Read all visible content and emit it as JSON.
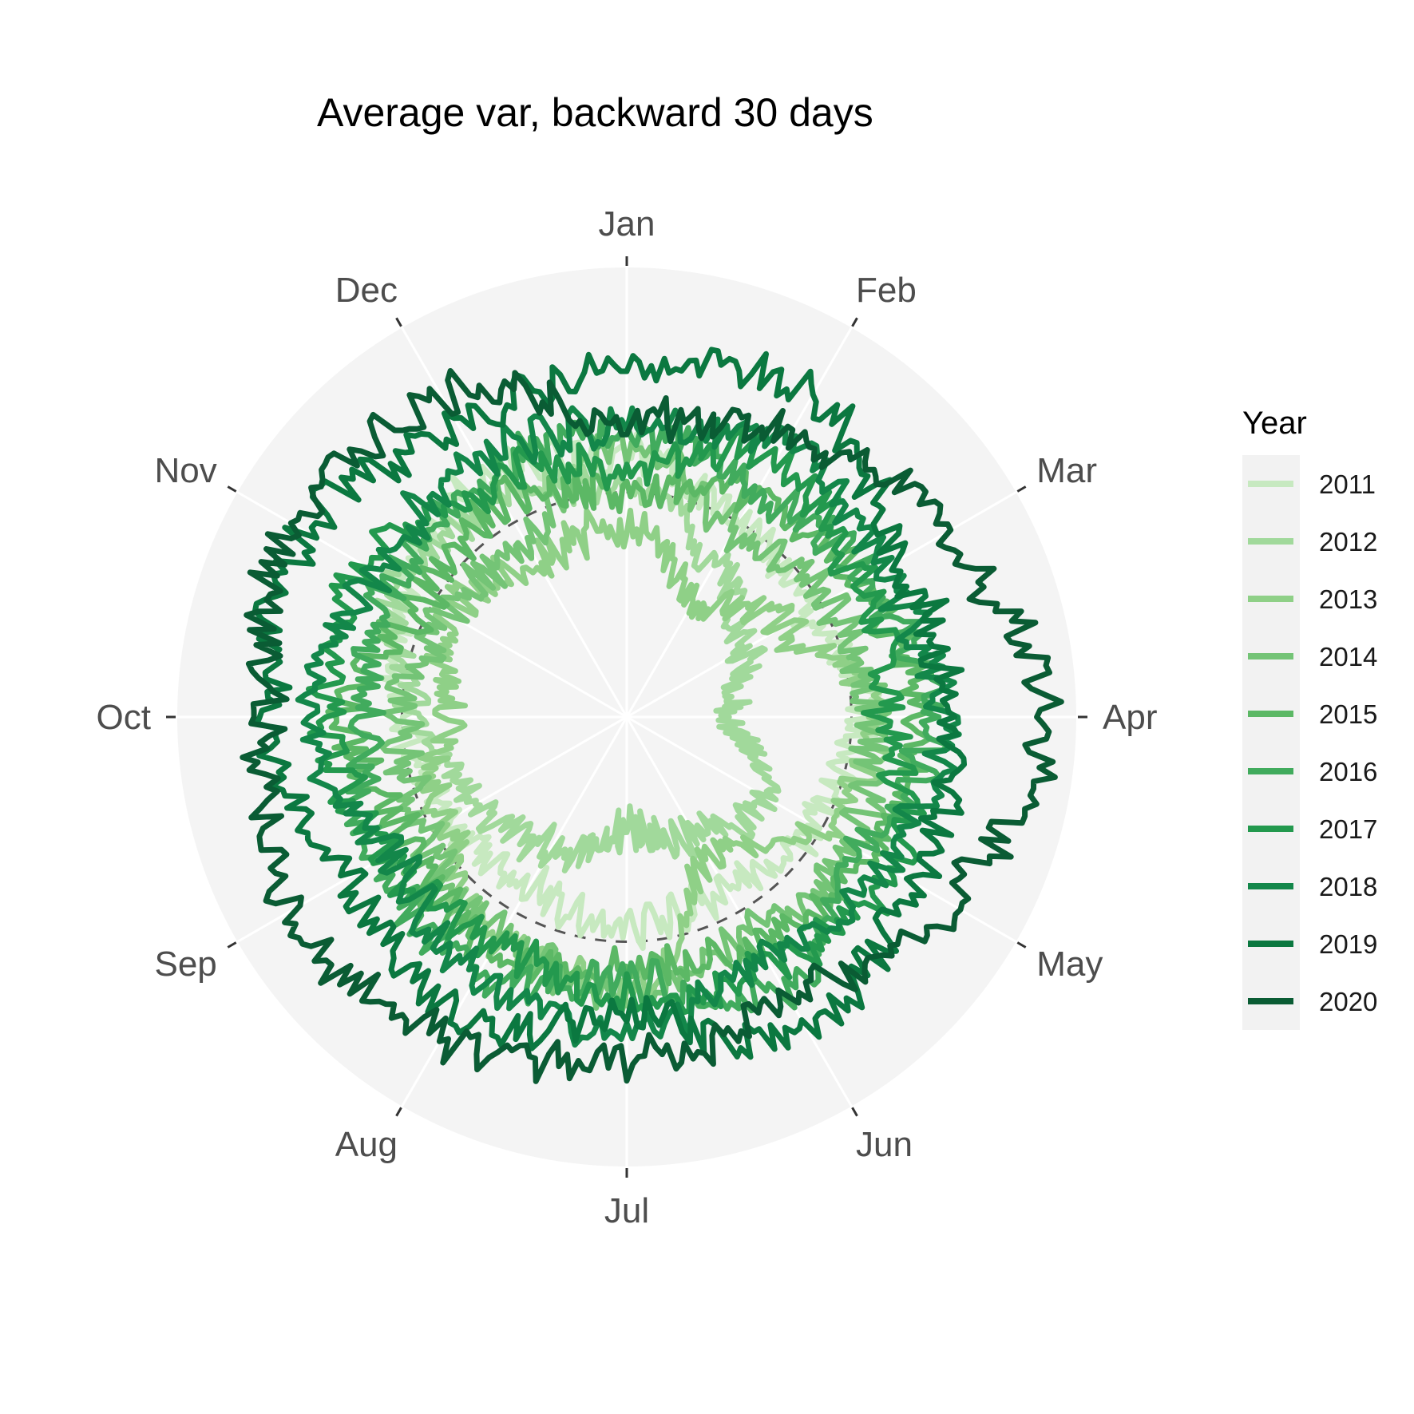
{
  "chart_data": {
    "type": "line",
    "coordinate_system": "polar",
    "title": "Average var, backward 30 days",
    "theta_labels": [
      "Jan",
      "Feb",
      "Mar",
      "Apr",
      "May",
      "Jun",
      "Jul",
      "Aug",
      "Sep",
      "Oct",
      "Nov",
      "Dec"
    ],
    "radius_range": [
      0,
      1
    ],
    "reference_circle_radius": 0.5,
    "reference_circle_style": "dashed",
    "grid": true,
    "legend": {
      "title": "Year",
      "position": "right",
      "entries": [
        "2011",
        "2012",
        "2013",
        "2014",
        "2015",
        "2016",
        "2017",
        "2018",
        "2019",
        "2020"
      ]
    },
    "series": [
      {
        "name": "2011",
        "color": "#c7e9c0",
        "values": [
          0.58,
          0.5,
          0.46,
          0.52,
          0.48,
          0.44,
          0.47,
          0.43,
          0.45,
          0.5,
          0.57,
          0.62
        ]
      },
      {
        "name": "2012",
        "color": "#a1d99b",
        "values": [
          0.52,
          0.4,
          0.3,
          0.22,
          0.36,
          0.3,
          0.25,
          0.34,
          0.38,
          0.46,
          0.58,
          0.56
        ]
      },
      {
        "name": "2013",
        "color": "#8fd087",
        "values": [
          0.42,
          0.3,
          0.4,
          0.56,
          0.5,
          0.36,
          0.6,
          0.58,
          0.48,
          0.4,
          0.45,
          0.4
        ]
      },
      {
        "name": "2014",
        "color": "#74c476",
        "values": [
          0.6,
          0.48,
          0.52,
          0.54,
          0.58,
          0.55,
          0.62,
          0.56,
          0.52,
          0.5,
          0.46,
          0.44
        ]
      },
      {
        "name": "2015",
        "color": "#5cb865",
        "values": [
          0.5,
          0.56,
          0.6,
          0.66,
          0.62,
          0.58,
          0.55,
          0.6,
          0.56,
          0.62,
          0.52,
          0.55
        ]
      },
      {
        "name": "2016",
        "color": "#41ab5d",
        "values": [
          0.64,
          0.58,
          0.62,
          0.68,
          0.6,
          0.7,
          0.58,
          0.66,
          0.64,
          0.58,
          0.6,
          0.62
        ]
      },
      {
        "name": "2017",
        "color": "#23994e",
        "values": [
          0.56,
          0.66,
          0.6,
          0.58,
          0.7,
          0.64,
          0.62,
          0.58,
          0.62,
          0.66,
          0.68,
          0.6
        ]
      },
      {
        "name": "2018",
        "color": "#13874a",
        "values": [
          0.64,
          0.7,
          0.66,
          0.7,
          0.66,
          0.62,
          0.7,
          0.66,
          0.6,
          0.7,
          0.64,
          0.66
        ]
      },
      {
        "name": "2019",
        "color": "#0b7840",
        "values": [
          0.78,
          0.82,
          0.7,
          0.72,
          0.74,
          0.8,
          0.66,
          0.76,
          0.72,
          0.8,
          0.82,
          0.74
        ]
      },
      {
        "name": "2020",
        "color": "#0a5c34",
        "values": [
          0.66,
          0.72,
          0.82,
          0.94,
          0.84,
          0.72,
          0.76,
          0.82,
          0.86,
          0.8,
          0.86,
          0.82
        ]
      }
    ]
  }
}
